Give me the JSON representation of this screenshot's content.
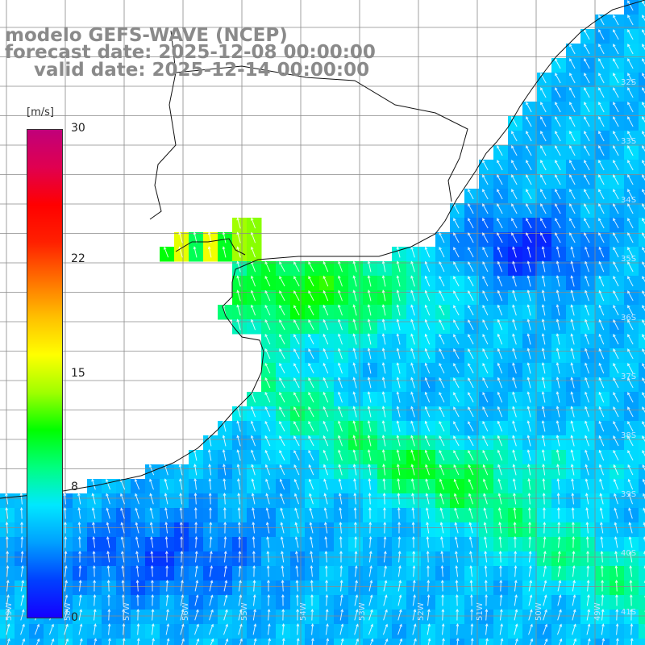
{
  "header": {
    "line1": "modelo GEFS-WAVE (NCEP)",
    "line2": "forecast date: 2025-12-08 00:00:00",
    "line3": "valid date: 2025-12-14 00:00:00"
  },
  "colorbar": {
    "unit": "[m/s]",
    "min": 0,
    "max": 30,
    "ticks": [
      {
        "label": "30",
        "value": 30
      },
      {
        "label": "22",
        "value": 22
      },
      {
        "label": "15",
        "value": 15
      },
      {
        "label": "8",
        "value": 8
      },
      {
        "label": "0",
        "value": 0
      }
    ],
    "colors": [
      "#1400ff",
      "#0040ff",
      "#00a0ff",
      "#00e8ff",
      "#00ff80",
      "#00ff00",
      "#a0ff00",
      "#ffff00",
      "#ffc000",
      "#ff7000",
      "#ff2000",
      "#ff0000",
      "#e00050",
      "#c0007a"
    ]
  },
  "map": {
    "lat_labels": [
      "32S",
      "33S",
      "34S",
      "35S",
      "36S",
      "37S",
      "38S",
      "39S",
      "40S",
      "41S"
    ],
    "lon_labels": [
      "59W",
      "58W",
      "57W",
      "56W",
      "55W",
      "54W",
      "53W",
      "52W",
      "51W",
      "50W",
      "49W"
    ]
  }
}
